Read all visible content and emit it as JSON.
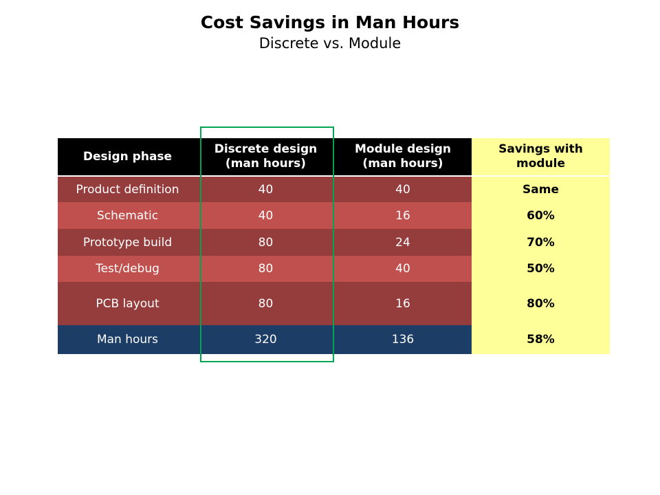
{
  "title": "Cost Savings in Man Hours",
  "subtitle": "Discrete vs. Module",
  "headers": [
    "Design phase",
    "Discrete design (man hours)",
    "Module design (man hours)",
    "Savings with module"
  ],
  "rows": [
    {
      "phase": "Product definition",
      "discrete": "40",
      "module": "40",
      "savings": "Same"
    },
    {
      "phase": "Schematic",
      "discrete": "40",
      "module": "16",
      "savings": "60%"
    },
    {
      "phase": "Prototype build",
      "discrete": "80",
      "module": "24",
      "savings": "70%"
    },
    {
      "phase": "Test/debug",
      "discrete": "80",
      "module": "40",
      "savings": "50%"
    },
    {
      "phase": "PCB layout",
      "discrete": "80",
      "module": "16",
      "savings": "80%"
    }
  ],
  "total": {
    "phase": "Man hours",
    "discrete": "320",
    "module": "136",
    "savings": "58%"
  }
}
